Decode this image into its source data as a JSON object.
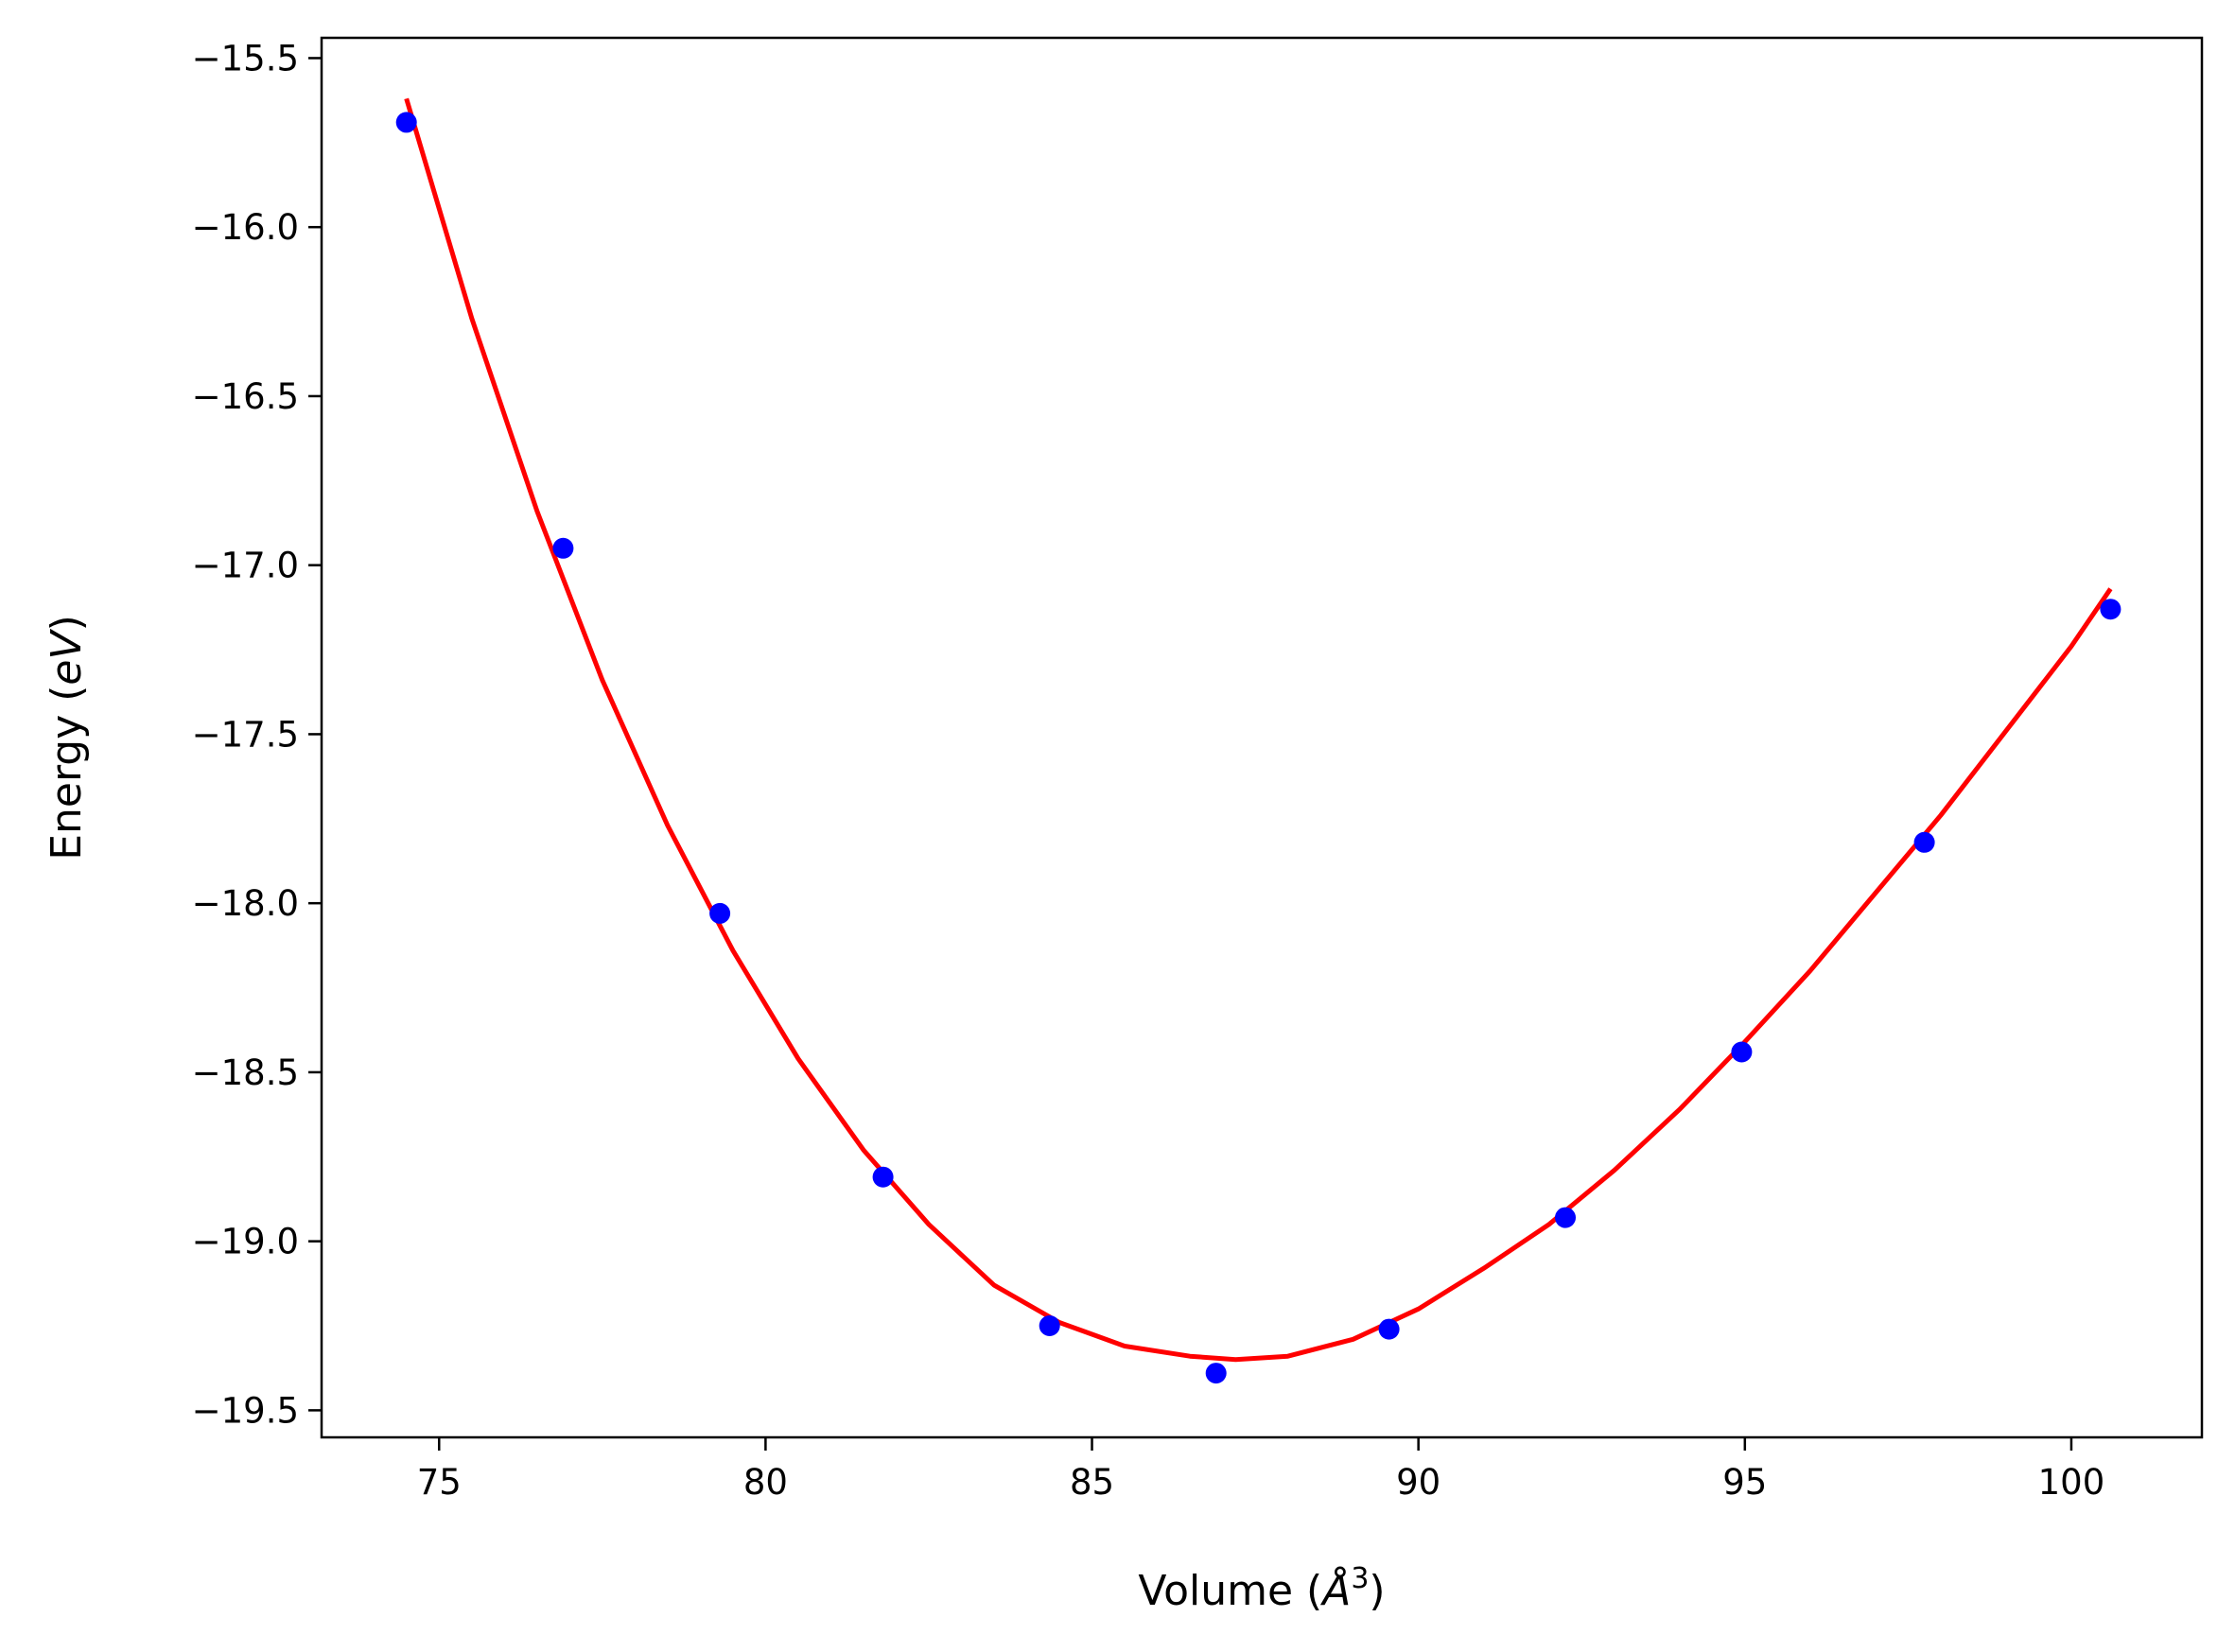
{
  "chart_data": {
    "type": "scatter",
    "xlabel": "Volume (Å³)",
    "ylabel": "Energy (eV)",
    "xlabel_parts": {
      "prefix": "Volume (",
      "math": "Å",
      "sup": "3",
      "suffix": ")"
    },
    "ylabel_parts": {
      "prefix": "Energy (",
      "math": "eV",
      "suffix": ")"
    },
    "xlim": [
      73.2,
      102.0
    ],
    "ylim": [
      -19.58,
      -15.44
    ],
    "x_ticks": [
      75,
      80,
      85,
      90,
      95,
      100
    ],
    "y_ticks": [
      -15.5,
      -16.0,
      -16.5,
      -17.0,
      -17.5,
      -18.0,
      -18.5,
      -19.0,
      -19.5
    ],
    "x_tick_labels": [
      "75",
      "80",
      "85",
      "90",
      "95",
      "100"
    ],
    "y_tick_labels": [
      "−15.5",
      "−16.0",
      "−16.5",
      "−17.0",
      "−17.5",
      "−18.0",
      "−18.5",
      "−19.0",
      "−19.5"
    ],
    "grid": false,
    "series": [
      {
        "kind": "scatter",
        "color": "#0000ff",
        "x": [
          74.5,
          76.9,
          79.3,
          81.8,
          84.35,
          86.9,
          89.55,
          92.25,
          94.95,
          97.75,
          100.6
        ],
        "y": [
          -15.69,
          -16.95,
          -18.03,
          -18.81,
          -19.25,
          -19.39,
          -19.26,
          -18.93,
          -18.44,
          -17.82,
          -17.13
        ]
      },
      {
        "kind": "line",
        "color": "#ff0000",
        "x": [
          74.5,
          75.5,
          76.5,
          77.5,
          78.5,
          79.5,
          80.5,
          81.5,
          82.5,
          83.5,
          84.5,
          85.5,
          86.5,
          87.2,
          88.0,
          89.0,
          90.0,
          91.0,
          92.0,
          93.0,
          94.0,
          95.0,
          96.0,
          97.0,
          98.0,
          99.0,
          100.0,
          100.6
        ],
        "y": [
          -15.62,
          -16.27,
          -16.84,
          -17.34,
          -17.77,
          -18.14,
          -18.46,
          -18.73,
          -18.95,
          -19.13,
          -19.24,
          -19.31,
          -19.34,
          -19.35,
          -19.34,
          -19.29,
          -19.2,
          -19.08,
          -18.95,
          -18.79,
          -18.61,
          -18.41,
          -18.2,
          -17.97,
          -17.74,
          -17.49,
          -17.24,
          -17.07
        ]
      }
    ]
  }
}
